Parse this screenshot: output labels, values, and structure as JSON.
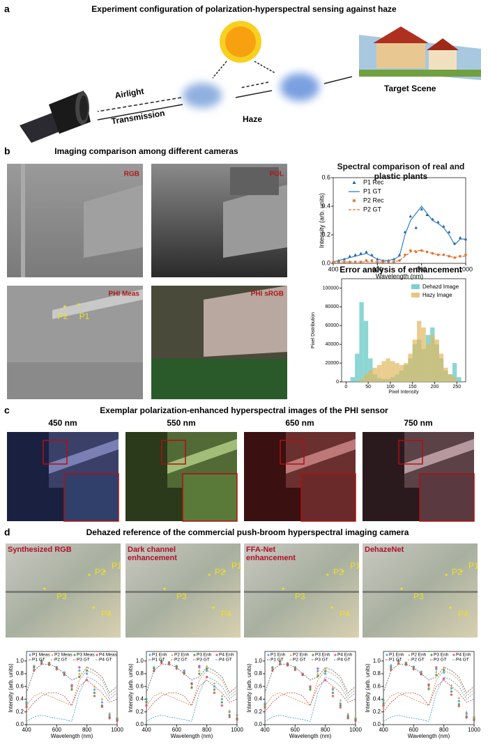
{
  "panel_a": {
    "label": "a",
    "title": "Experiment configuration of polarization-hyperspectral sensing against haze",
    "airlight": "Airlight",
    "transmission": "Transmission",
    "haze": "Haze",
    "target": "Target Scene"
  },
  "panel_b": {
    "label": "b",
    "title": "Imaging comparison among different cameras",
    "images": [
      "RGB",
      "POL",
      "PHI Meas",
      "PHI sRGB"
    ],
    "points": [
      "P2",
      "P1"
    ],
    "spectral": {
      "type": "line",
      "title": "Spectral comparison of real and plastic plants",
      "x_label": "Wavelength (nm)",
      "y_label": "Intensity (arb. units)",
      "xlim": [
        400,
        1000
      ],
      "xticks": [
        400,
        600,
        800,
        1000
      ],
      "ylim": [
        0,
        0.6
      ],
      "yticks": [
        {
          "value": 0,
          "label": "0.0"
        },
        0.2,
        0.4,
        0.6
      ],
      "x": [
        400,
        425,
        450,
        475,
        500,
        525,
        550,
        575,
        600,
        625,
        650,
        675,
        700,
        725,
        750,
        775,
        800,
        825,
        850,
        875,
        900,
        925,
        950,
        975,
        1000
      ],
      "series": [
        {
          "name": "P1 Rec",
          "color": "#1f5fa8",
          "marker": "triangle",
          "values": [
            0.01,
            0.02,
            0.03,
            0.05,
            0.06,
            0.07,
            0.08,
            0.06,
            0.03,
            0.02,
            0.02,
            0.03,
            0.06,
            0.22,
            0.33,
            0.25,
            0.38,
            0.34,
            0.31,
            0.29,
            0.26,
            0.22,
            0.14,
            0.18,
            0.17
          ]
        },
        {
          "name": "P1 GT",
          "color": "#2f7fc1",
          "values": [
            0.01,
            0.02,
            0.03,
            0.04,
            0.05,
            0.06,
            0.07,
            0.05,
            0.03,
            0.02,
            0.02,
            0.03,
            0.05,
            0.2,
            0.3,
            0.35,
            0.4,
            0.35,
            0.3,
            0.28,
            0.25,
            0.2,
            0.13,
            0.17,
            0.17
          ]
        },
        {
          "name": "P2 Rec",
          "color": "#e0702a",
          "marker": "star",
          "values": [
            0.01,
            0.01,
            0.01,
            0.01,
            0.01,
            0.01,
            0.02,
            0.02,
            0.01,
            0.01,
            0.01,
            0.01,
            0.02,
            0.06,
            0.09,
            0.08,
            0.09,
            0.08,
            0.07,
            0.06,
            0.06,
            0.05,
            0.04,
            0.05,
            0.06
          ]
        },
        {
          "name": "P2 GT",
          "color": "#e0702a",
          "dash": true,
          "values": [
            0.0,
            0.01,
            0.01,
            0.01,
            0.01,
            0.01,
            0.01,
            0.01,
            0.01,
            0.01,
            0.01,
            0.01,
            0.02,
            0.05,
            0.08,
            0.09,
            0.09,
            0.08,
            0.07,
            0.06,
            0.06,
            0.05,
            0.04,
            0.05,
            0.05
          ]
        }
      ]
    },
    "histogram": {
      "type": "histogram",
      "title": "Error analysis of enhancement",
      "x_label": "Pixel Intensity",
      "y_label": "Pixel Distribution",
      "bins": [
        0,
        10,
        20,
        30,
        40,
        50,
        60,
        70,
        80,
        90,
        100,
        110,
        120,
        130,
        140,
        150,
        160,
        170,
        180,
        190,
        200,
        210,
        220,
        230,
        240,
        250,
        260
      ],
      "xlim": [
        -10,
        270
      ],
      "xticks": [
        0,
        50,
        100,
        150,
        200,
        250
      ],
      "ylim": [
        0,
        110000
      ],
      "yticks": [
        0,
        20000,
        40000,
        60000,
        80000,
        100000
      ],
      "series": [
        {
          "name": "Dehazd Image",
          "color": "#5bc4c0",
          "values": [
            0,
            5000,
            30000,
            85000,
            65000,
            25000,
            8000,
            4000,
            3000,
            3000,
            5000,
            8000,
            12000,
            18000,
            25000,
            40000,
            45000,
            35000,
            50000,
            58000,
            40000,
            25000,
            12000,
            8000,
            20000,
            5000
          ]
        },
        {
          "name": "Hazy Image",
          "color": "#e0b860",
          "values": [
            0,
            0,
            0,
            3000,
            8000,
            12000,
            15000,
            18000,
            22000,
            25000,
            22000,
            20000,
            18000,
            20000,
            30000,
            45000,
            65000,
            58000,
            40000,
            50000,
            45000,
            30000,
            15000,
            8000,
            5000,
            0
          ]
        }
      ]
    }
  },
  "panel_c": {
    "label": "c",
    "title": "Exemplar polarization-enhanced hyperspectral images of the PHI sensor",
    "wavelengths": [
      "450 nm",
      "550 nm",
      "650 nm",
      "750 nm"
    ]
  },
  "panel_d": {
    "label": "d",
    "title": "Dehazed reference of the commercial push-broom hyperspectral imaging camera",
    "methods": [
      "Synthesized RGB",
      "Dark channel enhancement",
      "FFA-Net enhancement",
      "DehazeNet"
    ],
    "points": [
      "P1",
      "P2",
      "P3",
      "P4"
    ],
    "axes": {
      "x_label": "Wavelength (nm)",
      "y_label": "Intensity (arb. units)",
      "xlim": [
        400,
        1000
      ],
      "xticks": [
        400,
        600,
        800,
        1000
      ],
      "ylim": [
        0,
        1.15
      ],
      "yticks": [
        {
          "value": 0,
          "label": "0.0"
        },
        0.2,
        0.4,
        0.6,
        0.8,
        {
          "value": 1,
          "label": "1.0"
        }
      ],
      "x": [
        400,
        450,
        500,
        550,
        600,
        650,
        700,
        750,
        800,
        850,
        900,
        950,
        1000
      ]
    },
    "gt": [
      {
        "name": "P1 GT",
        "color": "#555555",
        "values": [
          0.5,
          0.85,
          0.95,
          0.95,
          0.9,
          0.8,
          0.7,
          0.75,
          0.9,
          0.85,
          0.75,
          0.5,
          0.6
        ]
      },
      {
        "name": "P2 GT",
        "color": "#d08040",
        "values": [
          0.3,
          0.45,
          0.5,
          0.45,
          0.4,
          0.35,
          0.3,
          0.7,
          0.85,
          0.8,
          0.7,
          0.45,
          0.55
        ]
      },
      {
        "name": "P3 GT",
        "color": "#d04040",
        "values": [
          0.2,
          0.35,
          0.45,
          0.5,
          0.5,
          0.45,
          0.3,
          0.6,
          0.7,
          0.6,
          0.5,
          0.35,
          0.4
        ]
      },
      {
        "name": "P4 GT",
        "color": "#30a0c0",
        "values": [
          0.05,
          0.12,
          0.15,
          0.12,
          0.1,
          0.08,
          0.05,
          0.5,
          0.75,
          0.7,
          0.6,
          0.4,
          0.5
        ]
      }
    ],
    "plots": [
      {
        "series": [
          {
            "name": "P1 Meas",
            "color": "#3a9bd5",
            "values": [
              0.35,
              0.92,
              0.98,
              0.96,
              0.9,
              0.82,
              0.6,
              0.85,
              0.8,
              0.55,
              0.35,
              0.15,
              0.1
            ]
          },
          {
            "name": "P2 Meas",
            "color": "#e0902a",
            "values": [
              0.3,
              0.88,
              0.97,
              0.95,
              0.88,
              0.8,
              0.58,
              0.8,
              0.9,
              0.6,
              0.4,
              0.18,
              0.12
            ]
          },
          {
            "name": "P3 Meas",
            "color": "#5aa050",
            "values": [
              0.32,
              0.9,
              1.0,
              0.97,
              0.9,
              0.78,
              0.55,
              0.75,
              0.85,
              0.5,
              0.3,
              0.12,
              0.08
            ]
          },
          {
            "name": "P4 Meas",
            "color": "#e04060",
            "values": [
              0.28,
              0.85,
              0.96,
              0.94,
              0.87,
              0.8,
              0.62,
              0.9,
              0.7,
              0.45,
              0.28,
              0.1,
              0.06
            ]
          }
        ]
      },
      {
        "series": [
          {
            "name": "P1 Enh",
            "color": "#3a9bd5",
            "values": [
              0.4,
              0.9,
              1.0,
              0.97,
              0.92,
              0.85,
              0.65,
              0.9,
              0.85,
              0.6,
              0.4,
              0.2,
              0.15
            ]
          },
          {
            "name": "P2 Enh",
            "color": "#e0902a",
            "values": [
              0.35,
              0.86,
              0.98,
              0.96,
              0.9,
              0.82,
              0.6,
              0.85,
              0.92,
              0.65,
              0.45,
              0.22,
              0.15
            ]
          },
          {
            "name": "P3 Enh",
            "color": "#5aa050",
            "values": [
              0.36,
              0.88,
              0.99,
              0.98,
              0.91,
              0.8,
              0.58,
              0.8,
              0.88,
              0.55,
              0.35,
              0.15,
              0.1
            ]
          },
          {
            "name": "P4 Enh",
            "color": "#e04060",
            "values": [
              0.3,
              0.84,
              0.97,
              0.95,
              0.88,
              0.82,
              0.64,
              0.92,
              0.75,
              0.5,
              0.3,
              0.12,
              0.08
            ]
          }
        ]
      },
      {
        "series": [
          {
            "name": "P1 Enh",
            "color": "#3a9bd5",
            "values": [
              0.33,
              0.9,
              0.99,
              0.96,
              0.9,
              0.8,
              0.58,
              0.84,
              0.8,
              0.55,
              0.33,
              0.14,
              0.1
            ]
          },
          {
            "name": "P2 Enh",
            "color": "#e0902a",
            "values": [
              0.3,
              0.87,
              0.97,
              0.94,
              0.88,
              0.8,
              0.57,
              0.8,
              0.88,
              0.58,
              0.38,
              0.17,
              0.11
            ]
          },
          {
            "name": "P3 Enh",
            "color": "#5aa050",
            "values": [
              0.31,
              0.89,
              0.99,
              0.96,
              0.89,
              0.78,
              0.55,
              0.76,
              0.84,
              0.5,
              0.3,
              0.12,
              0.08
            ]
          },
          {
            "name": "P4 Enh",
            "color": "#e04060",
            "values": [
              0.27,
              0.85,
              0.95,
              0.93,
              0.86,
              0.79,
              0.6,
              0.88,
              0.7,
              0.45,
              0.27,
              0.1,
              0.06
            ]
          }
        ]
      },
      {
        "series": [
          {
            "name": "P1 Enh",
            "color": "#3a9bd5",
            "values": [
              0.38,
              0.93,
              1.0,
              0.97,
              0.91,
              0.83,
              0.62,
              0.87,
              0.82,
              0.57,
              0.37,
              0.17,
              0.12
            ]
          },
          {
            "name": "P2 Enh",
            "color": "#e0902a",
            "values": [
              0.33,
              0.89,
              0.98,
              0.95,
              0.89,
              0.81,
              0.6,
              0.83,
              0.9,
              0.62,
              0.42,
              0.2,
              0.13
            ]
          },
          {
            "name": "P3 Enh",
            "color": "#5aa050",
            "values": [
              0.34,
              0.9,
              1.0,
              0.97,
              0.9,
              0.79,
              0.56,
              0.78,
              0.86,
              0.52,
              0.32,
              0.13,
              0.09
            ]
          },
          {
            "name": "P4 Enh",
            "color": "#e04060",
            "values": [
              0.3,
              0.86,
              0.96,
              0.94,
              0.87,
              0.8,
              0.63,
              0.9,
              0.72,
              0.47,
              0.29,
              0.11,
              0.07
            ]
          }
        ]
      }
    ]
  }
}
